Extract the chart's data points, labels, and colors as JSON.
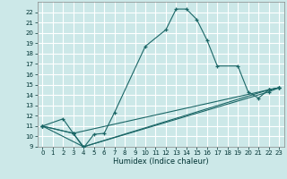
{
  "xlabel": "Humidex (Indice chaleur)",
  "background_color": "#cce8e8",
  "grid_color": "#ffffff",
  "line_color": "#1a6666",
  "xlim": [
    -0.5,
    23.5
  ],
  "ylim": [
    9,
    23
  ],
  "xticks": [
    0,
    1,
    2,
    3,
    4,
    5,
    6,
    7,
    8,
    9,
    10,
    11,
    12,
    13,
    14,
    15,
    16,
    17,
    18,
    19,
    20,
    21,
    22,
    23
  ],
  "yticks": [
    9,
    10,
    11,
    12,
    13,
    14,
    15,
    16,
    17,
    18,
    19,
    20,
    21,
    22
  ],
  "series": [
    {
      "x": [
        0,
        2,
        3,
        4,
        5,
        6,
        7,
        10,
        12,
        13,
        14,
        15,
        16,
        17,
        19,
        20,
        21,
        22,
        23
      ],
      "y": [
        11,
        11.7,
        10.3,
        8.9,
        10.2,
        10.3,
        12.3,
        18.7,
        20.3,
        22.3,
        22.3,
        21.3,
        19.3,
        16.8,
        16.8,
        14.3,
        13.7,
        14.5,
        14.7
      ]
    },
    {
      "x": [
        0,
        3,
        4,
        22,
        23
      ],
      "y": [
        11,
        10.3,
        9.0,
        14.5,
        14.7
      ]
    },
    {
      "x": [
        0,
        3,
        22,
        23
      ],
      "y": [
        11,
        10.3,
        14.5,
        14.7
      ]
    },
    {
      "x": [
        0,
        4,
        22,
        23
      ],
      "y": [
        11,
        9.0,
        14.3,
        14.7
      ]
    }
  ]
}
